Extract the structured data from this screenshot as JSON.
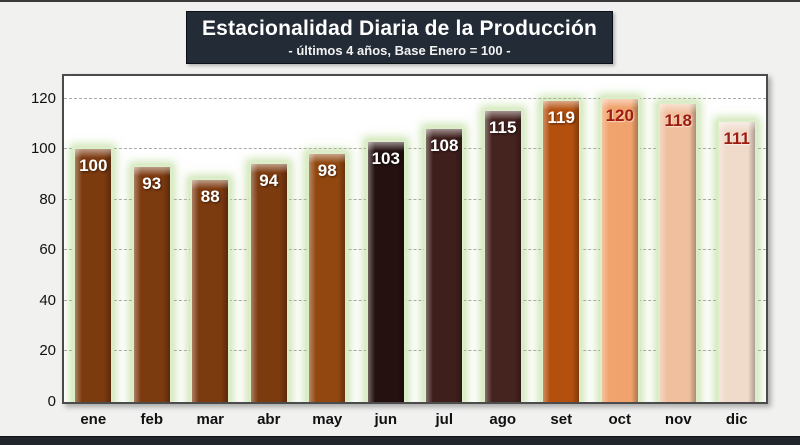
{
  "header": {
    "title": "Estacionalidad Diaria de la Producción",
    "subtitle": "- últimos 4 años, Base Enero = 100 -"
  },
  "chart_data": {
    "type": "bar",
    "title": "Estacionalidad Diaria de la Producción",
    "subtitle": "- últimos 4 años, Base Enero = 100 -",
    "categories": [
      "ene",
      "feb",
      "mar",
      "abr",
      "may",
      "jun",
      "jul",
      "ago",
      "set",
      "oct",
      "nov",
      "dic"
    ],
    "values": [
      100,
      93,
      88,
      94,
      98,
      103,
      108,
      115,
      119,
      120,
      118,
      111
    ],
    "bar_colors": [
      "#7C3A0F",
      "#7C3A0F",
      "#7C3A0F",
      "#7C3A0F",
      "#91470F",
      "#251110",
      "#3E1F1C",
      "#45231F",
      "#B4500E",
      "#F0A36D",
      "#F0C09E",
      "#F0DBCB"
    ],
    "value_label_colors": [
      "#FFFFFF",
      "#FFFFFF",
      "#FFFFFF",
      "#FFFFFF",
      "#FFFFFF",
      "#FFFFFF",
      "#FFFFFF",
      "#FFFFFF",
      "#FFFFFF",
      "#9E1B10",
      "#9E1B10",
      "#9E1B10"
    ],
    "glow_color": "#C4E3A0",
    "yticks": [
      0,
      20,
      40,
      60,
      80,
      100,
      120
    ],
    "ylim": [
      0,
      129
    ],
    "grid": "horizontal-dashed",
    "legend": "none",
    "xlabel": "",
    "ylabel": ""
  }
}
